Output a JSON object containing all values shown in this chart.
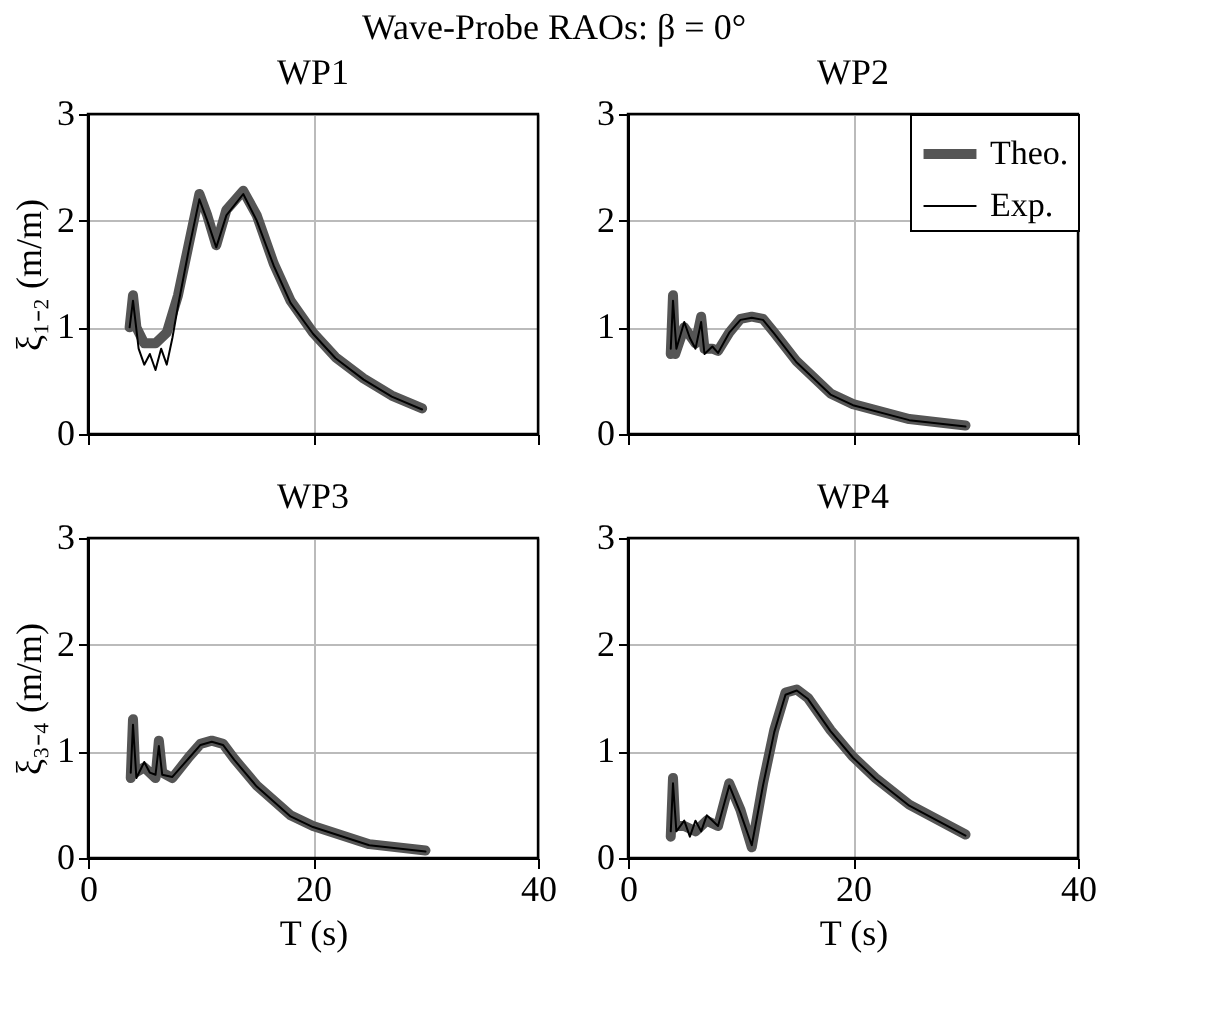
{
  "chart_data": [
    {
      "type": "line",
      "title": "WP1",
      "ylabel": "ξ₁₋₂ (m/m)",
      "annotations": [
        "Wave-Probe RAOs: β = 0°"
      ],
      "xlim": [
        0,
        40
      ],
      "xticks": [
        0,
        20,
        40
      ],
      "ylim": [
        0,
        3
      ],
      "yticks": [
        0,
        1,
        2,
        3
      ],
      "grid": true,
      "tick_labels": "y",
      "series": [
        {
          "color": "#555555",
          "x": [
            3.7,
            4.0,
            4.3,
            5.0,
            6.0,
            7.0,
            8.0,
            9.0,
            9.9,
            10.6,
            11.4,
            12.3,
            13.8,
            15.0,
            16.5,
            18.0,
            20.0,
            22.0,
            24.5,
            27.0,
            29.7
          ],
          "values": [
            1.0,
            1.3,
            1.0,
            0.85,
            0.85,
            0.95,
            1.3,
            1.8,
            2.25,
            2.05,
            1.77,
            2.1,
            2.28,
            2.05,
            1.6,
            1.25,
            0.95,
            0.72,
            0.52,
            0.36,
            0.24
          ]
        },
        {
          "color": "#000000",
          "x": [
            3.7,
            4.0,
            4.5,
            5.0,
            5.5,
            6.0,
            6.5,
            7.0,
            7.5,
            8.0,
            9.0,
            9.9,
            10.6,
            11.4,
            12.3,
            13.8,
            15.0,
            16.5,
            18.0,
            20.0,
            22.0,
            24.5,
            27.0,
            29.7
          ],
          "values": [
            1.0,
            1.25,
            0.8,
            0.65,
            0.75,
            0.6,
            0.8,
            0.65,
            0.9,
            1.2,
            1.75,
            2.2,
            2.0,
            1.75,
            2.05,
            2.25,
            2.0,
            1.58,
            1.23,
            0.94,
            0.71,
            0.51,
            0.35,
            0.23
          ]
        }
      ]
    },
    {
      "type": "line",
      "title": "WP2",
      "legend": "top right",
      "xlim": [
        0,
        40
      ],
      "xticks": [
        0,
        20,
        40
      ],
      "ylim": [
        0,
        3
      ],
      "yticks": [
        0,
        1,
        2,
        3
      ],
      "grid": true,
      "tick_labels": "y",
      "series": [
        {
          "name": "Theo.",
          "color": "#555555",
          "x": [
            3.8,
            4.0,
            4.2,
            5.0,
            6.0,
            6.5,
            6.8,
            7.5,
            8.0,
            9.0,
            10.0,
            11.0,
            12.0,
            13.0,
            15.0,
            18.0,
            20.0,
            25.0,
            30.0
          ],
          "values": [
            0.75,
            1.3,
            0.75,
            1.0,
            0.85,
            1.1,
            0.8,
            0.8,
            0.78,
            0.95,
            1.08,
            1.1,
            1.08,
            0.95,
            0.68,
            0.38,
            0.28,
            0.14,
            0.08
          ]
        },
        {
          "name": "Exp.",
          "color": "#000000",
          "x": [
            3.8,
            4.0,
            4.3,
            5.0,
            5.5,
            6.0,
            6.5,
            6.8,
            7.5,
            8.0,
            9.0,
            10.0,
            11.0,
            12.0,
            13.0,
            15.0,
            18.0,
            20.0,
            25.0,
            30.0
          ],
          "values": [
            0.8,
            1.25,
            0.8,
            1.05,
            0.9,
            0.8,
            1.05,
            0.75,
            0.82,
            0.76,
            0.95,
            1.07,
            1.09,
            1.07,
            0.94,
            0.67,
            0.37,
            0.27,
            0.13,
            0.07
          ]
        }
      ]
    },
    {
      "type": "line",
      "title": "WP3",
      "ylabel": "ξ₃₋₄ (m/m)",
      "xlabel": "T (s)",
      "xlim": [
        0,
        40
      ],
      "xticks": [
        0,
        20,
        40
      ],
      "ylim": [
        0,
        3
      ],
      "yticks": [
        0,
        1,
        2,
        3
      ],
      "grid": true,
      "series": [
        {
          "color": "#555555",
          "x": [
            3.8,
            4.0,
            4.2,
            5.0,
            6.0,
            6.3,
            6.6,
            7.5,
            9.0,
            10.0,
            11.0,
            12.0,
            13.0,
            15.0,
            18.0,
            20.0,
            25.0,
            30.0
          ],
          "values": [
            0.75,
            1.3,
            0.8,
            0.85,
            0.75,
            1.1,
            0.8,
            0.75,
            0.95,
            1.07,
            1.1,
            1.07,
            0.93,
            0.68,
            0.4,
            0.3,
            0.13,
            0.07
          ]
        },
        {
          "color": "#000000",
          "x": [
            3.8,
            4.0,
            4.3,
            5.0,
            5.5,
            6.0,
            6.3,
            6.6,
            7.5,
            9.0,
            10.0,
            11.0,
            12.0,
            13.0,
            15.0,
            18.0,
            20.0,
            25.0,
            30.0
          ],
          "values": [
            0.8,
            1.25,
            0.75,
            0.9,
            0.8,
            0.78,
            1.05,
            0.78,
            0.76,
            0.94,
            1.06,
            1.09,
            1.06,
            0.92,
            0.67,
            0.39,
            0.29,
            0.12,
            0.06
          ]
        }
      ]
    },
    {
      "type": "line",
      "title": "WP4",
      "xlabel": "T (s)",
      "xlim": [
        0,
        40
      ],
      "xticks": [
        0,
        20,
        40
      ],
      "ylim": [
        0,
        3
      ],
      "yticks": [
        0,
        1,
        2,
        3
      ],
      "grid": true,
      "series": [
        {
          "color": "#555555",
          "x": [
            3.8,
            4.0,
            4.2,
            5.0,
            6.0,
            7.0,
            8.0,
            9.0,
            10.0,
            11.0,
            12.0,
            13.0,
            14.0,
            15.0,
            16.0,
            18.0,
            20.0,
            22.0,
            25.0,
            30.0
          ],
          "values": [
            0.2,
            0.75,
            0.3,
            0.3,
            0.25,
            0.35,
            0.3,
            0.7,
            0.45,
            0.1,
            0.7,
            1.2,
            1.55,
            1.58,
            1.5,
            1.2,
            0.95,
            0.75,
            0.5,
            0.22
          ]
        },
        {
          "color": "#000000",
          "x": [
            3.8,
            4.0,
            4.3,
            5.0,
            5.5,
            6.0,
            6.5,
            7.0,
            8.0,
            9.0,
            10.0,
            11.0,
            12.0,
            13.0,
            14.0,
            15.0,
            16.0,
            18.0,
            20.0,
            22.0,
            25.0,
            30.0
          ],
          "values": [
            0.25,
            0.7,
            0.25,
            0.35,
            0.2,
            0.35,
            0.25,
            0.4,
            0.3,
            0.68,
            0.42,
            0.12,
            0.68,
            1.18,
            1.53,
            1.57,
            1.49,
            1.19,
            0.94,
            0.74,
            0.49,
            0.21
          ]
        }
      ]
    }
  ]
}
